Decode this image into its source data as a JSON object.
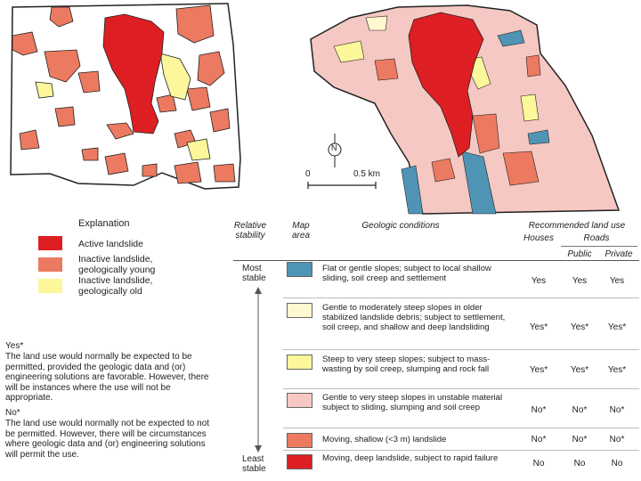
{
  "colors": {
    "active": "#dd1f23",
    "young": "#ec7a60",
    "old": "#fbf79a",
    "teal": "#4f94b4",
    "pale_yellow": "#fff7cf",
    "pink": "#f6c8c3"
  },
  "scale": {
    "zero": "0",
    "distance": "0.5 km",
    "north": "N"
  },
  "legend": {
    "title": "Explanation",
    "items": [
      {
        "label": "Active landslide",
        "color": "#dd1f23"
      },
      {
        "label": "Inactive landslide, geologically young",
        "color": "#ec7a60"
      },
      {
        "label": "Inactive landslide, geologically old",
        "color": "#fbf79a"
      }
    ]
  },
  "notes": {
    "yes_heading": "Yes*",
    "yes_text": "The land use would normally be expected to be permitted, provided the geologic data and (or) engineering solutions are favorable. However, there will be instances where the use will not be appropriate.",
    "no_heading": "No*",
    "no_text": "The land use would normally not be expected to not be permitted. However, there will be circumstances where geologic data and (or) engineering solutions will permit the use."
  },
  "table": {
    "headers": {
      "relative_stability": "Relative stability",
      "map_area": "Map area",
      "geologic_conditions": "Geologic conditions",
      "recommended": "Recommended land use",
      "houses": "Houses",
      "roads": "Roads",
      "public": "Public",
      "private": "Private"
    },
    "most_stable": "Most stable",
    "least_stable": "Least stable",
    "rows": [
      {
        "color": "#4f94b4",
        "condition": "Flat or gentle slopes; subject to local shallow sliding, soil creep and settlement",
        "houses": "Yes",
        "public": "Yes",
        "private": "Yes"
      },
      {
        "color": "#fff7cf",
        "condition": "Gentle to moderately steep slopes in older stabilized landslide debris; subject to settlement, soil creep, and shallow and deep landsliding",
        "houses": "Yes*",
        "public": "Yes*",
        "private": "Yes*"
      },
      {
        "color": "#fbf79a",
        "condition": "Steep to very steep slopes; subject to mass-wasting by soil creep, slumping and rock fall",
        "houses": "Yes*",
        "public": "Yes*",
        "private": "Yes*"
      },
      {
        "color": "#f6c8c3",
        "condition": "Gentle to very steep slopes in unstable material subject to sliding, slumping and soil creep",
        "houses": "No*",
        "public": "No*",
        "private": "No*"
      },
      {
        "color": "#ec7a60",
        "condition": "Moving, shallow (<3 m) landslide",
        "houses": "No*",
        "public": "No*",
        "private": "No*"
      },
      {
        "color": "#dd1f23",
        "condition": "Moving, deep landslide, subject to rapid failure",
        "houses": "No",
        "public": "No",
        "private": "No"
      }
    ]
  }
}
